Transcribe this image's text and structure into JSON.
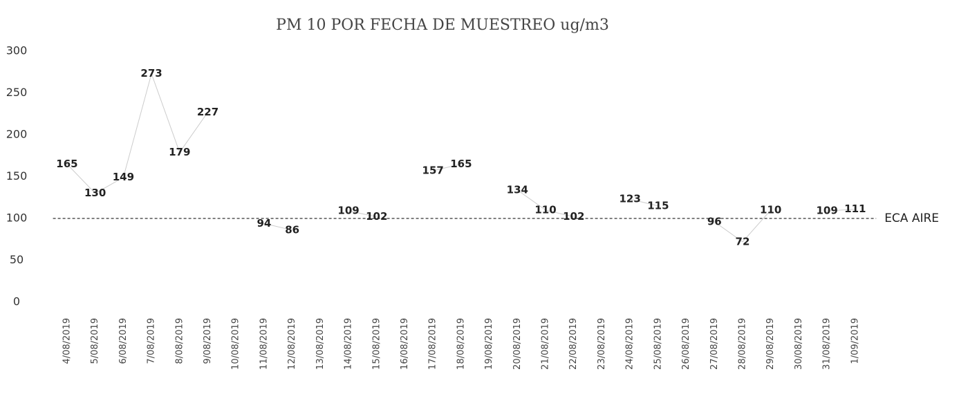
{
  "chart_data": {
    "type": "line",
    "title": "PM 10 POR FECHA DE MUESTREO ug/m3",
    "categories": [
      "4/08/2019",
      "5/08/2019",
      "6/08/2019",
      "7/08/2019",
      "8/08/2019",
      "9/08/2019",
      "10/08/2019",
      "11/08/2019",
      "12/08/2019",
      "13/08/2019",
      "14/08/2019",
      "15/08/2019",
      "16/08/2019",
      "17/08/2019",
      "18/08/2019",
      "19/08/2019",
      "20/08/2019",
      "21/08/2019",
      "22/08/2019",
      "23/08/2019",
      "24/08/2019",
      "25/08/2019",
      "26/08/2019",
      "27/08/2019",
      "28/08/2019",
      "29/08/2019",
      "30/08/2019",
      "31/08/2019",
      "1/09/2019"
    ],
    "series": [
      {
        "name": "PM 10",
        "color": "#cccccc",
        "values": [
          165,
          130,
          149,
          273,
          179,
          227,
          null,
          94,
          86,
          null,
          109,
          102,
          null,
          157,
          165,
          null,
          134,
          110,
          102,
          null,
          123,
          115,
          null,
          96,
          72,
          110,
          null,
          109,
          111
        ]
      }
    ],
    "reference_line": {
      "label": "ECA AIRE",
      "value": 100,
      "color": "#333333"
    },
    "ylim": [
      0,
      300
    ],
    "yticks": [
      0,
      50,
      100,
      150,
      200,
      250,
      300
    ],
    "grid": false
  }
}
